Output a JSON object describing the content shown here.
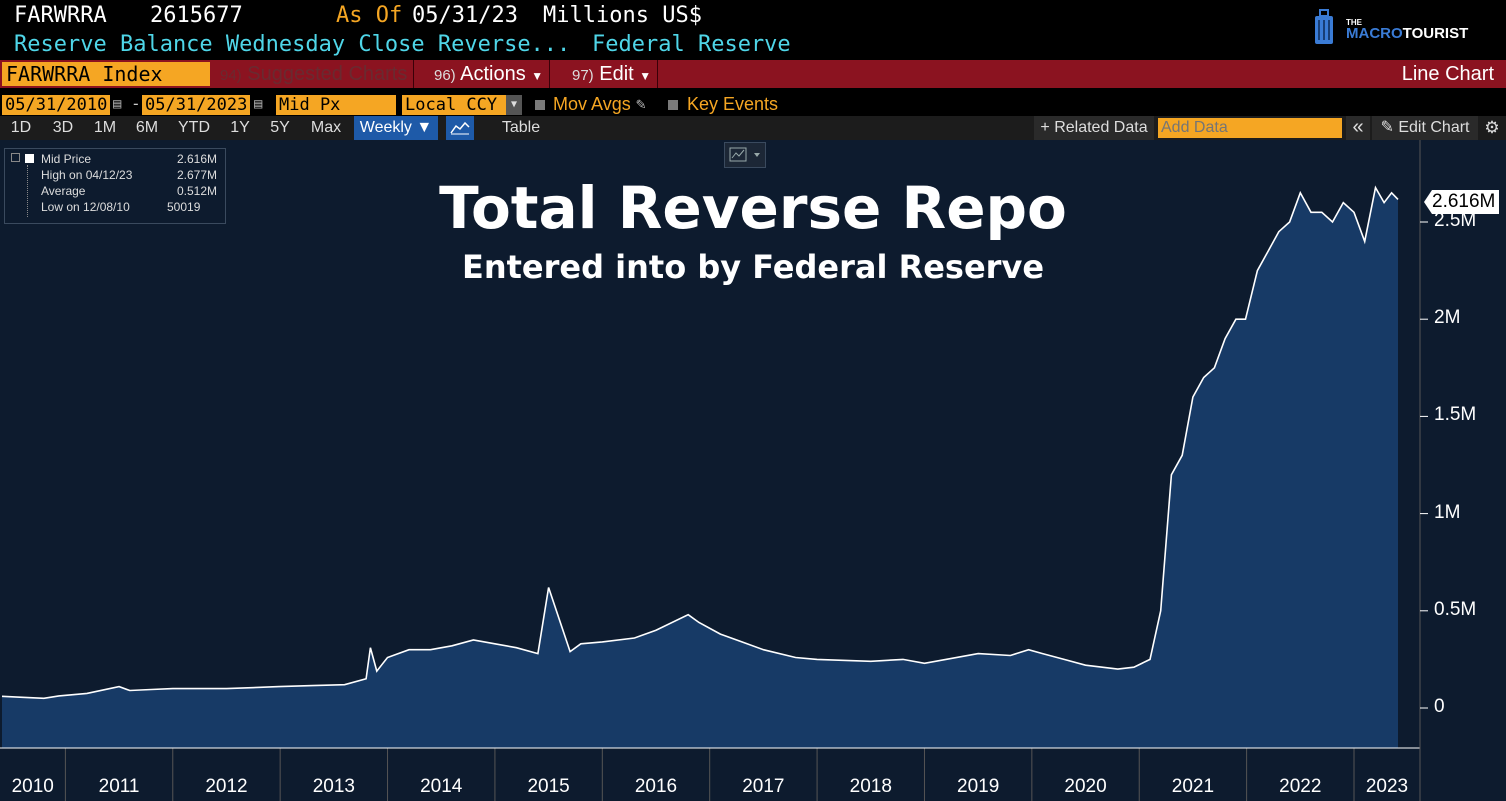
{
  "header": {
    "ticker": "FARWRRA",
    "last_value": "2615677",
    "as_of_label": "As Of",
    "as_of_date": "05/31/23",
    "units": "Millions US$",
    "description": "Reserve Balance Wednesday Close Reverse...",
    "source": "Federal Reserve",
    "logo_the": "THE",
    "logo_macro": "MACRO",
    "logo_tourist": "TOURIST"
  },
  "redbar": {
    "security": "FARWRRA Index",
    "suggested_num": "94)",
    "suggested_label": "Suggested Charts",
    "actions_num": "96)",
    "actions_label": "Actions",
    "edit_num": "97)",
    "edit_label": "Edit",
    "chart_type": "Line Chart"
  },
  "params": {
    "start_date": "05/31/2010",
    "dash": "-",
    "end_date": "05/31/2023",
    "field": "Mid Px",
    "currency": "Local CCY",
    "mov_avgs": "Mov Avgs",
    "key_events": "Key Events"
  },
  "toolbar": {
    "ranges": [
      "1D",
      "3D",
      "1M",
      "6M",
      "YTD",
      "1Y",
      "5Y",
      "Max"
    ],
    "period": "Weekly ▼",
    "table": "Table",
    "related_data": "+ Related Data",
    "add_data_placeholder": "Add Data",
    "collapse": "«",
    "edit_chart": "Edit Chart",
    "settings_glyph": "⚙"
  },
  "legend": {
    "rows": [
      {
        "label": "Mid Price",
        "value": "2.616M"
      },
      {
        "label": "High on 04/12/23",
        "value": "2.677M"
      },
      {
        "label": "Average",
        "value": "0.512M"
      },
      {
        "label": "Low on 12/08/10",
        "value": "50019"
      }
    ]
  },
  "chart_data": {
    "type": "area",
    "title": "Total Reverse Repo",
    "subtitle": "Entered into by Federal Reserve",
    "ylabel": "Millions US$",
    "ylim": [
      -200000,
      2900000
    ],
    "yticks": [
      {
        "value": 0,
        "label": "0"
      },
      {
        "value": 500000,
        "label": "0.5M"
      },
      {
        "value": 1000000,
        "label": "1M"
      },
      {
        "value": 1500000,
        "label": "1.5M"
      },
      {
        "value": 2000000,
        "label": "2M"
      },
      {
        "value": 2500000,
        "label": "2.5M"
      }
    ],
    "xticks": [
      "2010",
      "2011",
      "2012",
      "2013",
      "2014",
      "2015",
      "2016",
      "2017",
      "2018",
      "2019",
      "2020",
      "2021",
      "2022",
      "2023"
    ],
    "last_label": "2.616M",
    "colors": {
      "line": "#ffffff",
      "fill": "#173a66",
      "background": "#0d1b2e"
    },
    "series": [
      {
        "name": "Mid Price",
        "x": [
          2010.41,
          2010.6,
          2010.8,
          2010.94,
          2011.2,
          2011.5,
          2011.6,
          2011.8,
          2012.0,
          2012.5,
          2012.99,
          2013.3,
          2013.6,
          2013.8,
          2013.84,
          2013.9,
          2014.0,
          2014.2,
          2014.4,
          2014.6,
          2014.8,
          2015.0,
          2015.2,
          2015.4,
          2015.5,
          2015.7,
          2015.8,
          2016.0,
          2016.3,
          2016.5,
          2016.8,
          2016.9,
          2017.1,
          2017.3,
          2017.5,
          2017.8,
          2018.0,
          2018.5,
          2018.8,
          2019.0,
          2019.5,
          2019.8,
          2019.97,
          2020.1,
          2020.3,
          2020.5,
          2020.8,
          2020.95,
          2021.1,
          2021.2,
          2021.3,
          2021.4,
          2021.5,
          2021.6,
          2021.7,
          2021.8,
          2021.9,
          2021.99,
          2022.1,
          2022.2,
          2022.3,
          2022.4,
          2022.5,
          2022.6,
          2022.7,
          2022.8,
          2022.9,
          2023.0,
          2023.1,
          2023.2,
          2023.28,
          2023.35,
          2023.41
        ],
        "values": [
          60000,
          55000,
          50019,
          62000,
          75000,
          110000,
          90000,
          95000,
          100000,
          100000,
          110000,
          115000,
          120000,
          150000,
          310000,
          190000,
          260000,
          300000,
          300000,
          320000,
          350000,
          330000,
          310000,
          280000,
          620000,
          290000,
          330000,
          340000,
          360000,
          400000,
          480000,
          440000,
          380000,
          340000,
          300000,
          260000,
          250000,
          240000,
          250000,
          230000,
          280000,
          270000,
          300000,
          280000,
          250000,
          220000,
          200000,
          210000,
          250000,
          500000,
          1200000,
          1300000,
          1600000,
          1700000,
          1750000,
          1900000,
          2000000,
          2000000,
          2250000,
          2350000,
          2450000,
          2500000,
          2650000,
          2550000,
          2550000,
          2500000,
          2600000,
          2550000,
          2400000,
          2677000,
          2600000,
          2650000,
          2616000
        ]
      }
    ]
  }
}
